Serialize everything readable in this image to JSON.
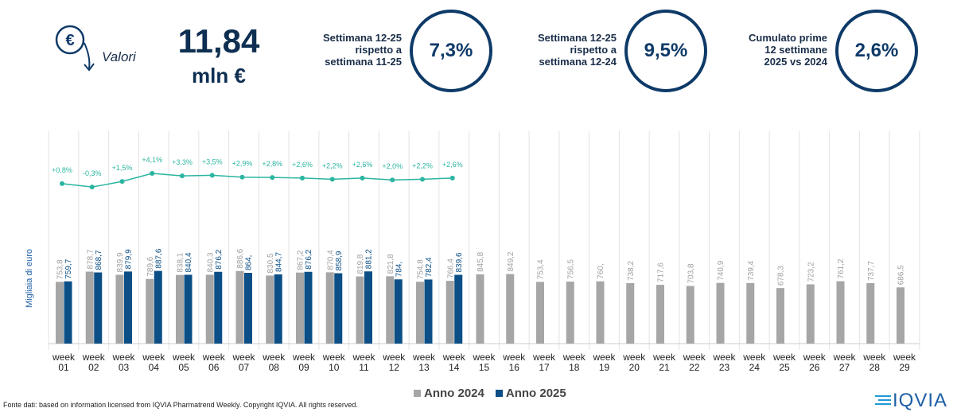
{
  "header": {
    "kpi_label": "Valori",
    "kpi_value": "11,84",
    "kpi_unit": "mln €",
    "cards": [
      {
        "lines": [
          "Settimana 12-25",
          "rispetto a",
          "settimana 11-25"
        ],
        "value": "7,3%"
      },
      {
        "lines": [
          "Settimana 12-25",
          "rispetto a",
          "settimana 12-24"
        ],
        "value": "9,5%"
      },
      {
        "lines": [
          "Cumulato prime",
          "12 settimane",
          "2025 vs 2024"
        ],
        "value": "2,6%"
      }
    ]
  },
  "chart_data": {
    "type": "bar",
    "y_label": "Migliaia di euro",
    "categories": [
      "week 01",
      "week 02",
      "week 03",
      "week 04",
      "week 05",
      "week 06",
      "week 07",
      "week 08",
      "week 09",
      "week 10",
      "week 11",
      "week 12",
      "week 13",
      "week 14",
      "week 15",
      "week 16",
      "week 17",
      "week 18",
      "week 19",
      "week 20",
      "week 21",
      "week 22",
      "week 23",
      "week 24",
      "week 25",
      "week 26",
      "week 27",
      "week 28",
      "week 29"
    ],
    "series": [
      {
        "name": "Anno 2024",
        "color": "#a6a6a6",
        "values": [
          753.8,
          878.7,
          839.9,
          789.6,
          838.1,
          840.3,
          886.6,
          830.5,
          867.2,
          870.4,
          819.8,
          821.8,
          754.8,
          766.4,
          845.8,
          849.2,
          753.4,
          756.5,
          760,
          738.2,
          717.6,
          703.8,
          740.9,
          739.4,
          678.3,
          723.2,
          761.2,
          737.7,
          686.5
        ],
        "value_labels": [
          "753,8",
          "878,7",
          "839,9",
          "789,6",
          "838,1",
          "840,3",
          "886,6",
          "830,5",
          "867,2",
          "870,4",
          "819,8",
          "821,8",
          "754,8",
          "766,4",
          "845,8",
          "849,2",
          "753,4",
          "756,5",
          "760,",
          "738,2",
          "717,6",
          "703,8",
          "740,9",
          "739,4",
          "678,3",
          "723,2",
          "761,2",
          "737,7",
          "686,5"
        ]
      },
      {
        "name": "Anno 2025",
        "color": "#0b4f86",
        "values": [
          759.7,
          868.7,
          879.9,
          887.6,
          840.4,
          876.2,
          864,
          844.7,
          876.2,
          858.9,
          881.2,
          784,
          782.4,
          839.6,
          null,
          null,
          null,
          null,
          null,
          null,
          null,
          null,
          null,
          null,
          null,
          null,
          null,
          null,
          null
        ],
        "value_labels": [
          "759,7",
          "868,7",
          "879,9",
          "887,6",
          "840,4",
          "876,2",
          "864,",
          "844,7",
          "876,2",
          "858,9",
          "881,2",
          "784,",
          "782,4",
          "839,6",
          null,
          null,
          null,
          null,
          null,
          null,
          null,
          null,
          null,
          null,
          null,
          null,
          null,
          null,
          null
        ]
      }
    ],
    "line": {
      "type": "line",
      "color": "#2bb5a0",
      "values": [
        0.8,
        -0.3,
        1.5,
        4.1,
        3.3,
        3.5,
        2.9,
        2.8,
        2.6,
        2.2,
        2.6,
        2.0,
        2.2,
        2.6
      ],
      "value_labels": [
        "+0,8%",
        "-0,3%",
        "+1,5%",
        "+4,1%",
        "+3,3%",
        "+3,5%",
        "+2,9%",
        "+2,8%",
        "+2,6%",
        "+2,2%",
        "+2,6%",
        "+2,0%",
        "+2,2%",
        "+2,6%"
      ]
    }
  },
  "source": "Fonte dati: based on information licensed from IQVIA Pharmatrend Weekly. Copyright IQVIA. All rights reserved.",
  "logo": "IQVIA"
}
